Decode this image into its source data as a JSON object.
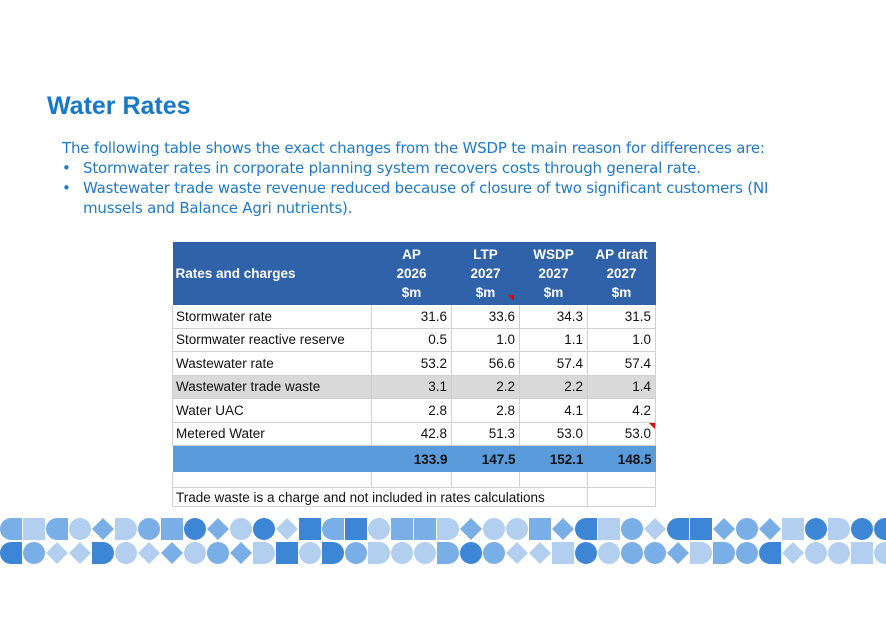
{
  "title": "Water Rates",
  "intro": "The following table shows the exact changes from the WSDP te main reason for differences are:",
  "bullets": [
    "Stormwater rates in corporate planning system recovers costs through general rate.",
    "Wastewater trade waste revenue reduced because of closure of two significant customers (NI mussels and Balance Agri nutrients)."
  ],
  "table": {
    "header": {
      "label": "Rates and charges",
      "columns": [
        {
          "l1": "AP",
          "l2": "2026",
          "l3": "$m"
        },
        {
          "l1": "LTP",
          "l2": "2027",
          "l3": "$m"
        },
        {
          "l1": "WSDP",
          "l2": "2027",
          "l3": "$m"
        },
        {
          "l1": "AP draft",
          "l2": "2027",
          "l3": "$m"
        }
      ]
    },
    "rows": [
      {
        "label": "Stormwater rate",
        "values": [
          "31.6",
          "33.6",
          "34.3",
          "31.5"
        ]
      },
      {
        "label": "Stormwater reactive reserve",
        "values": [
          "0.5",
          "1.0",
          "1.1",
          "1.0"
        ]
      },
      {
        "label": "Wastewater rate",
        "values": [
          "53.2",
          "56.6",
          "57.4",
          "57.4"
        ]
      },
      {
        "label": "Wastewater trade waste",
        "values": [
          "3.1",
          "2.2",
          "2.2",
          "1.4"
        ]
      },
      {
        "label": "Water UAC",
        "values": [
          "2.8",
          "2.8",
          "4.1",
          "4.2"
        ]
      },
      {
        "label": "Metered Water",
        "values": [
          "42.8",
          "51.3",
          "53.0",
          "53.0"
        ]
      }
    ],
    "totals": [
      "133.9",
      "147.5",
      "152.1",
      "148.5"
    ],
    "note": "Trade waste is a charge and not included in rates calculations"
  },
  "colors": {
    "title": "#1678c8",
    "text": "#1f7bc9",
    "header_bg": "#2f62a9",
    "total_bg": "#5a9bdc",
    "highlight_row": "#d9d9d9",
    "deco_light": "#b3cff0",
    "deco_mid": "#7aaee6",
    "deco_dark": "#3d86d6"
  }
}
